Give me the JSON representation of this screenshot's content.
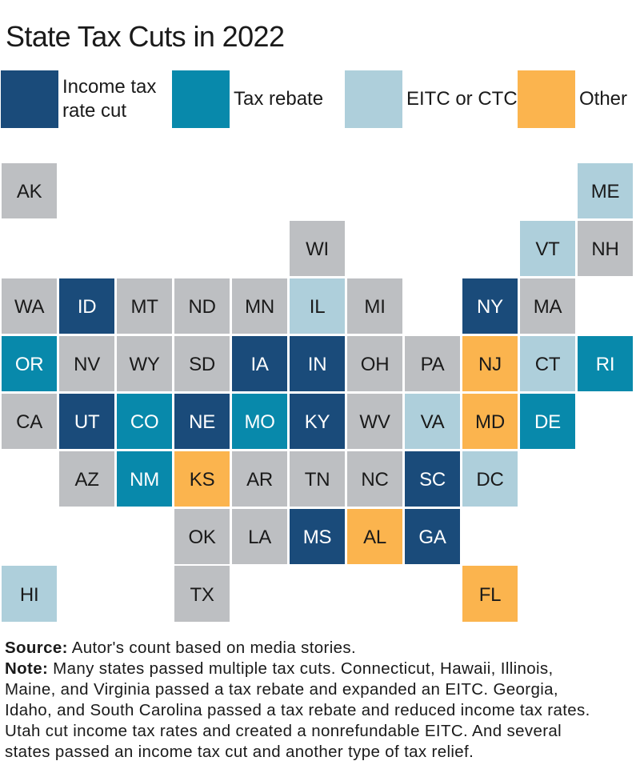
{
  "title": "State Tax Cuts in 2022",
  "colors": {
    "background": "#ffffff",
    "text": "#1a1a1a",
    "label_on_dark_tile": "#ffffff",
    "label_on_light_tile": "#1a1a1a"
  },
  "legend": {
    "items": [
      {
        "label": "Income tax rate cut",
        "category": "income_tax_rate_cut"
      },
      {
        "label": "Tax rebate",
        "category": "tax_rebate"
      },
      {
        "label": "EITC or CTC",
        "category": "eitc_or_ctc"
      },
      {
        "label": "Other",
        "category": "other"
      }
    ]
  },
  "footer": {
    "source_label": "Source:",
    "source_text": " Autor's count based on media stories.",
    "note_label": "Note:",
    "note_lines": [
      " Many states passed multiple tax cuts. Connecticut, Hawaii, Illinois,",
      "Maine, and Virginia passed a tax rebate and expanded an EITC. Georgia,",
      "Idaho, and South Carolina passed a tax rebate and reduced income tax rates.",
      "Utah cut income tax rates and created a nonrefundable EITC. And several",
      "states passed an income tax cut and another type of tax relief."
    ]
  },
  "chart_data": {
    "type": "tile-grid-map",
    "title": "State Tax Cuts in 2022",
    "legend_position": "top",
    "grid": {
      "columns": 11,
      "rows": 8
    },
    "categories": [
      {
        "key": "income_tax_rate_cut",
        "label": "Income tax rate cut",
        "color": "#1a4b7a",
        "text_color": "#ffffff"
      },
      {
        "key": "tax_rebate",
        "label": "Tax rebate",
        "color": "#0889ab",
        "text_color": "#ffffff"
      },
      {
        "key": "eitc_or_ctc",
        "label": "EITC or CTC",
        "color": "#aecfdb",
        "text_color": "#1a1a1a"
      },
      {
        "key": "other",
        "label": "Other",
        "color": "#fbb44e",
        "text_color": "#1a1a1a"
      },
      {
        "key": "none",
        "label": "",
        "color": "#bdbfc2",
        "text_color": "#1a1a1a"
      }
    ],
    "states": [
      {
        "abbr": "AK",
        "col": 1,
        "row": 1,
        "category": "none"
      },
      {
        "abbr": "ME",
        "col": 11,
        "row": 1,
        "category": "eitc_or_ctc"
      },
      {
        "abbr": "WI",
        "col": 6,
        "row": 2,
        "category": "none"
      },
      {
        "abbr": "VT",
        "col": 10,
        "row": 2,
        "category": "eitc_or_ctc"
      },
      {
        "abbr": "NH",
        "col": 11,
        "row": 2,
        "category": "none"
      },
      {
        "abbr": "WA",
        "col": 1,
        "row": 3,
        "category": "none"
      },
      {
        "abbr": "ID",
        "col": 2,
        "row": 3,
        "category": "income_tax_rate_cut"
      },
      {
        "abbr": "MT",
        "col": 3,
        "row": 3,
        "category": "none"
      },
      {
        "abbr": "ND",
        "col": 4,
        "row": 3,
        "category": "none"
      },
      {
        "abbr": "MN",
        "col": 5,
        "row": 3,
        "category": "none"
      },
      {
        "abbr": "IL",
        "col": 6,
        "row": 3,
        "category": "eitc_or_ctc"
      },
      {
        "abbr": "MI",
        "col": 7,
        "row": 3,
        "category": "none"
      },
      {
        "abbr": "NY",
        "col": 9,
        "row": 3,
        "category": "income_tax_rate_cut"
      },
      {
        "abbr": "MA",
        "col": 10,
        "row": 3,
        "category": "none"
      },
      {
        "abbr": "OR",
        "col": 1,
        "row": 4,
        "category": "tax_rebate"
      },
      {
        "abbr": "NV",
        "col": 2,
        "row": 4,
        "category": "none"
      },
      {
        "abbr": "WY",
        "col": 3,
        "row": 4,
        "category": "none"
      },
      {
        "abbr": "SD",
        "col": 4,
        "row": 4,
        "category": "none"
      },
      {
        "abbr": "IA",
        "col": 5,
        "row": 4,
        "category": "income_tax_rate_cut"
      },
      {
        "abbr": "IN",
        "col": 6,
        "row": 4,
        "category": "income_tax_rate_cut"
      },
      {
        "abbr": "OH",
        "col": 7,
        "row": 4,
        "category": "none"
      },
      {
        "abbr": "PA",
        "col": 8,
        "row": 4,
        "category": "none"
      },
      {
        "abbr": "NJ",
        "col": 9,
        "row": 4,
        "category": "other"
      },
      {
        "abbr": "CT",
        "col": 10,
        "row": 4,
        "category": "eitc_or_ctc"
      },
      {
        "abbr": "RI",
        "col": 11,
        "row": 4,
        "category": "tax_rebate"
      },
      {
        "abbr": "CA",
        "col": 1,
        "row": 5,
        "category": "none"
      },
      {
        "abbr": "UT",
        "col": 2,
        "row": 5,
        "category": "income_tax_rate_cut"
      },
      {
        "abbr": "CO",
        "col": 3,
        "row": 5,
        "category": "tax_rebate"
      },
      {
        "abbr": "NE",
        "col": 4,
        "row": 5,
        "category": "income_tax_rate_cut"
      },
      {
        "abbr": "MO",
        "col": 5,
        "row": 5,
        "category": "tax_rebate"
      },
      {
        "abbr": "KY",
        "col": 6,
        "row": 5,
        "category": "income_tax_rate_cut"
      },
      {
        "abbr": "WV",
        "col": 7,
        "row": 5,
        "category": "none"
      },
      {
        "abbr": "VA",
        "col": 8,
        "row": 5,
        "category": "eitc_or_ctc"
      },
      {
        "abbr": "MD",
        "col": 9,
        "row": 5,
        "category": "other"
      },
      {
        "abbr": "DE",
        "col": 10,
        "row": 5,
        "category": "tax_rebate"
      },
      {
        "abbr": "AZ",
        "col": 2,
        "row": 6,
        "category": "none"
      },
      {
        "abbr": "NM",
        "col": 3,
        "row": 6,
        "category": "tax_rebate"
      },
      {
        "abbr": "KS",
        "col": 4,
        "row": 6,
        "category": "other"
      },
      {
        "abbr": "AR",
        "col": 5,
        "row": 6,
        "category": "none"
      },
      {
        "abbr": "TN",
        "col": 6,
        "row": 6,
        "category": "none"
      },
      {
        "abbr": "NC",
        "col": 7,
        "row": 6,
        "category": "none"
      },
      {
        "abbr": "SC",
        "col": 8,
        "row": 6,
        "category": "income_tax_rate_cut"
      },
      {
        "abbr": "DC",
        "col": 9,
        "row": 6,
        "category": "eitc_or_ctc"
      },
      {
        "abbr": "OK",
        "col": 4,
        "row": 7,
        "category": "none"
      },
      {
        "abbr": "LA",
        "col": 5,
        "row": 7,
        "category": "none"
      },
      {
        "abbr": "MS",
        "col": 6,
        "row": 7,
        "category": "income_tax_rate_cut"
      },
      {
        "abbr": "AL",
        "col": 7,
        "row": 7,
        "category": "other"
      },
      {
        "abbr": "GA",
        "col": 8,
        "row": 7,
        "category": "income_tax_rate_cut"
      },
      {
        "abbr": "HI",
        "col": 1,
        "row": 8,
        "category": "eitc_or_ctc"
      },
      {
        "abbr": "TX",
        "col": 4,
        "row": 8,
        "category": "none"
      },
      {
        "abbr": "FL",
        "col": 9,
        "row": 8,
        "category": "other"
      }
    ]
  }
}
